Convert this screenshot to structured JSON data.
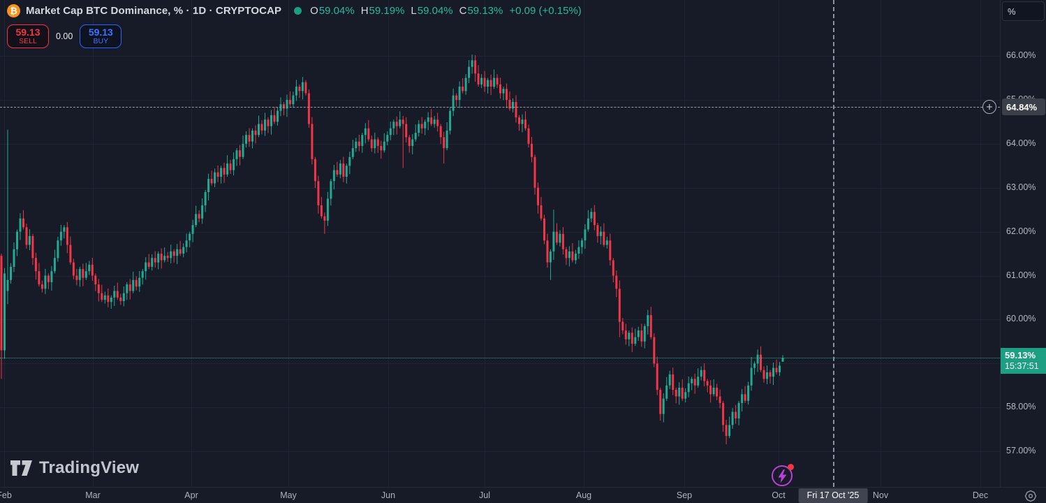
{
  "header": {
    "symbol_icon": "btc-icon",
    "title": "Market Cap BTC Dominance, % · 1D · CRYPTOCAP",
    "ohlc": {
      "o_label": "O",
      "o_value": "59.04%",
      "h_label": "H",
      "h_value": "59.19%",
      "l_label": "L",
      "l_value": "59.04%",
      "c_label": "C",
      "c_value": "59.13%",
      "change": "+0.09 (+0.15%)"
    }
  },
  "order_panel": {
    "sell_price": "59.13",
    "sell_label": "SELL",
    "spread": "0.00",
    "buy_price": "59.13",
    "buy_label": "BUY"
  },
  "watermark": "TradingView",
  "price_axis": {
    "unit_button": "%",
    "labels": [
      {
        "text": "66.00%",
        "value": 66
      },
      {
        "text": "65.00%",
        "value": 65
      },
      {
        "text": "64.00%",
        "value": 64
      },
      {
        "text": "63.00%",
        "value": 63
      },
      {
        "text": "62.00%",
        "value": 62
      },
      {
        "text": "61.00%",
        "value": 61
      },
      {
        "text": "60.00%",
        "value": 60
      },
      {
        "text": "58.00%",
        "value": 58
      },
      {
        "text": "57.00%",
        "value": 57
      }
    ],
    "current": {
      "text": "59.13%",
      "countdown": "15:37:51",
      "value": 59.13
    }
  },
  "time_axis": {
    "months": [
      {
        "label": "Feb",
        "x": 6
      },
      {
        "label": "Mar",
        "x": 133
      },
      {
        "label": "Apr",
        "x": 274
      },
      {
        "label": "May",
        "x": 413
      },
      {
        "label": "Jun",
        "x": 556
      },
      {
        "label": "Jul",
        "x": 694
      },
      {
        "label": "Aug",
        "x": 836
      },
      {
        "label": "Sep",
        "x": 980
      },
      {
        "label": "Oct",
        "x": 1115
      },
      {
        "label": "Nov",
        "x": 1261
      },
      {
        "label": "Dec",
        "x": 1404
      }
    ],
    "crosshair_date": "Fri 17 Oct '25"
  },
  "crosshair": {
    "x": 1193,
    "price": 64.84,
    "price_label": "64.84%"
  },
  "colors": {
    "up": "#22ab94",
    "down": "#f23645",
    "sell": "#f23645",
    "buy": "#2962ff",
    "current_label_bg": "#1d9f83",
    "crosshair_label_bg": "#3b3f4a",
    "btc_orange": "#f7931a",
    "bolt_purple": "#bb3fd9"
  },
  "chart_data": {
    "type": "candlestick",
    "title": "Market Cap BTC Dominance, % · 1D · CRYPTOCAP",
    "x_unit": "1 day",
    "x_visible_range": [
      "Feb",
      "Dec"
    ],
    "y_range": [
      56.6,
      66.6
    ],
    "y_gridlines": [
      66,
      65,
      64,
      63,
      62,
      61,
      60,
      59,
      58,
      57
    ],
    "last_close": 59.13,
    "closes": [
      59.3,
      61.05,
      60.9,
      61.2,
      61.6,
      62.0,
      62.3,
      62.1,
      61.7,
      61.9,
      61.4,
      61.1,
      60.8,
      60.7,
      61.0,
      60.85,
      61.1,
      61.4,
      61.8,
      62.0,
      62.1,
      61.7,
      61.3,
      61.0,
      60.9,
      61.15,
      60.95,
      61.1,
      61.25,
      61.0,
      60.8,
      60.6,
      60.45,
      60.55,
      60.4,
      60.5,
      60.65,
      60.5,
      60.42,
      60.6,
      60.8,
      60.65,
      60.9,
      60.75,
      60.95,
      61.1,
      61.3,
      61.2,
      61.4,
      61.3,
      61.5,
      61.35,
      61.45,
      61.4,
      61.55,
      61.45,
      61.6,
      61.5,
      61.65,
      61.8,
      61.95,
      62.15,
      62.4,
      62.3,
      62.6,
      62.9,
      63.2,
      63.1,
      63.35,
      63.25,
      63.45,
      63.3,
      63.55,
      63.4,
      63.65,
      63.85,
      63.7,
      64.0,
      64.2,
      64.05,
      64.3,
      64.2,
      64.45,
      64.3,
      64.55,
      64.4,
      64.65,
      64.5,
      64.75,
      64.9,
      64.8,
      65.0,
      64.9,
      65.1,
      65.3,
      65.2,
      65.4,
      65.15,
      64.45,
      63.65,
      63.15,
      62.6,
      62.35,
      62.25,
      62.75,
      63.15,
      63.4,
      63.3,
      63.55,
      63.25,
      63.5,
      63.7,
      63.9,
      64.05,
      63.95,
      64.2,
      64.35,
      64.1,
      63.9,
      64.1,
      63.95,
      63.85,
      64.05,
      64.2,
      64.35,
      64.5,
      64.4,
      64.55,
      64.45,
      64.15,
      63.95,
      64.1,
      64.25,
      64.45,
      64.35,
      64.5,
      64.6,
      64.45,
      64.55,
      64.4,
      64.15,
      63.9,
      64.3,
      64.75,
      65.1,
      65.0,
      65.3,
      65.2,
      65.5,
      65.75,
      65.9,
      65.6,
      65.35,
      65.5,
      65.3,
      65.45,
      65.3,
      65.5,
      65.35,
      65.15,
      65.25,
      65.0,
      64.8,
      64.95,
      64.6,
      64.45,
      64.55,
      64.35,
      64.0,
      63.7,
      63.0,
      62.6,
      62.3,
      61.8,
      61.3,
      61.55,
      62.0,
      61.75,
      61.95,
      61.6,
      61.4,
      61.55,
      61.35,
      61.5,
      61.65,
      61.8,
      62.05,
      62.3,
      62.45,
      62.15,
      61.9,
      62.0,
      61.7,
      61.8,
      61.35,
      61.0,
      60.7,
      59.95,
      59.75,
      59.55,
      59.7,
      59.45,
      59.6,
      59.75,
      59.5,
      59.85,
      60.1,
      59.6,
      59.0,
      58.4,
      57.85,
      58.2,
      58.5,
      58.75,
      58.4,
      58.25,
      58.45,
      58.2,
      58.35,
      58.55,
      58.65,
      58.5,
      58.7,
      58.85,
      58.6,
      58.5,
      58.3,
      58.45,
      58.25,
      58.1,
      57.6,
      57.35,
      57.6,
      57.9,
      57.75,
      58.1,
      58.3,
      58.15,
      58.5,
      58.9,
      59.0,
      59.2,
      58.85,
      58.65,
      58.8,
      58.7,
      58.9,
      58.8,
      58.95,
      59.13
    ],
    "candle_overrides": {
      "0": {
        "o": 61.45,
        "l": 58.65
      },
      "2": {
        "o": 60.65,
        "h": 64.32,
        "l": 60.35
      },
      "97": {
        "h": 65.45
      },
      "103": {
        "l": 61.95
      },
      "128": {
        "l": 63.45
      },
      "141": {
        "l": 63.55
      },
      "150": {
        "h": 66.03
      },
      "175": {
        "l": 60.9
      },
      "176": {
        "h": 62.5
      },
      "197": {
        "l": 59.6
      },
      "210": {
        "l": 57.7
      },
      "231": {
        "l": 57.16
      },
      "239": {
        "h": 59.15
      },
      "249": {
        "o": 59.04,
        "h": 59.19,
        "l": 59.04
      }
    }
  }
}
